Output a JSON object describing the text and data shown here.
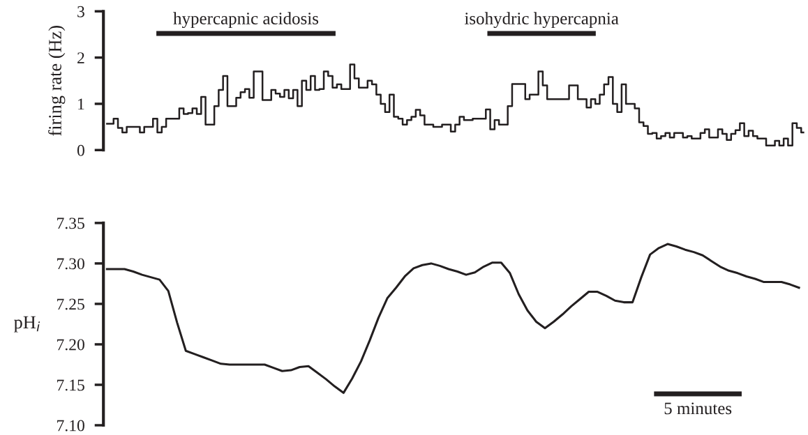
{
  "chart_data": [
    {
      "type": "step",
      "ylabel": "firing rate (Hz)",
      "ylim": [
        0,
        3
      ],
      "yticks": [
        0,
        1,
        2,
        3
      ],
      "tick_labels": "y",
      "grid": false,
      "legend": false,
      "categories": [
        null,
        null,
        null,
        null,
        null,
        null,
        null,
        null,
        null,
        null,
        null,
        null,
        null,
        null,
        null,
        null,
        null,
        null,
        null,
        null,
        null,
        null,
        null,
        null,
        null,
        null,
        null,
        null,
        null,
        null,
        null,
        null,
        null,
        null,
        null,
        null,
        null,
        null,
        null,
        null,
        null,
        null,
        null,
        null,
        null,
        null,
        null,
        null,
        null,
        null,
        null,
        null,
        null,
        null,
        null,
        null,
        null,
        null,
        null,
        null,
        null,
        null,
        null,
        null,
        null,
        null,
        null,
        null,
        null,
        null,
        null,
        null,
        null,
        null,
        null,
        null,
        null,
        null,
        null,
        null,
        null,
        null,
        null,
        null,
        null,
        null,
        null,
        null,
        null,
        null,
        null,
        null,
        null,
        null,
        null,
        null,
        null,
        null,
        null,
        null,
        null,
        null,
        null,
        null,
        null,
        null,
        null,
        null,
        null,
        null,
        null,
        null,
        null,
        null,
        null,
        null,
        null,
        null,
        null,
        null,
        null,
        null,
        null,
        null,
        null,
        null,
        null,
        null,
        null,
        null,
        null,
        null,
        null,
        null,
        null,
        null,
        null,
        null,
        null,
        null,
        null,
        null,
        null,
        null,
        null,
        null,
        null,
        null,
        null,
        null,
        null,
        null,
        null,
        null,
        null,
        null,
        null,
        null,
        null,
        null
      ],
      "series": [
        {
          "color": "#231f20",
          "values": [
            0.57,
            0.57,
            0.68,
            0.48,
            0.38,
            0.5,
            0.5,
            0.5,
            0.38,
            0.5,
            0.5,
            0.68,
            0.38,
            0.5,
            0.68,
            0.68,
            0.68,
            0.9,
            0.78,
            0.8,
            0.9,
            0.78,
            1.15,
            0.55,
            0.55,
            0.95,
            1.3,
            1.6,
            0.95,
            0.95,
            1.13,
            1.25,
            1.32,
            1.13,
            1.7,
            1.7,
            1.08,
            1.08,
            1.3,
            1.22,
            1.15,
            1.3,
            1.12,
            1.3,
            0.95,
            1.5,
            1.3,
            1.6,
            1.3,
            1.32,
            1.7,
            1.6,
            1.35,
            1.42,
            1.32,
            1.32,
            1.85,
            1.55,
            1.35,
            1.35,
            1.5,
            1.42,
            1.2,
            1.0,
            0.82,
            1.2,
            0.72,
            0.68,
            0.55,
            0.65,
            0.72,
            0.87,
            0.75,
            0.55,
            0.55,
            0.5,
            0.5,
            0.55,
            0.55,
            0.4,
            0.55,
            0.72,
            0.65,
            0.65,
            0.68,
            0.68,
            0.68,
            0.88,
            0.45,
            0.65,
            0.55,
            0.55,
            0.95,
            1.43,
            1.43,
            1.43,
            1.1,
            1.2,
            1.2,
            1.7,
            1.4,
            1.1,
            1.1,
            1.1,
            1.1,
            1.1,
            1.4,
            1.4,
            1.1,
            1.1,
            0.92,
            1.1,
            1.0,
            1.2,
            1.42,
            1.58,
            1.0,
            0.82,
            1.42,
            1.0,
            1.0,
            0.9,
            0.6,
            0.52,
            0.35,
            0.37,
            0.25,
            0.3,
            0.37,
            0.27,
            0.37,
            0.37,
            0.27,
            0.3,
            0.25,
            0.25,
            0.37,
            0.45,
            0.27,
            0.27,
            0.45,
            0.35,
            0.22,
            0.35,
            0.43,
            0.58,
            0.3,
            0.42,
            0.3,
            0.25,
            0.25,
            0.1,
            0.1,
            0.2,
            0.1,
            0.25,
            0.1,
            0.58,
            0.48,
            0.38
          ]
        }
      ],
      "annotations": [
        "hypercapnic acidosis",
        "isohydric hypercapnia"
      ]
    },
    {
      "type": "line",
      "ylabel": "pH$_{i}$",
      "ylim": [
        7.1,
        7.35
      ],
      "yticks": [
        {
          "value": 7.1,
          "label": "7.10"
        },
        7.15,
        {
          "value": 7.2,
          "label": "7.20"
        },
        7.25,
        {
          "value": 7.3,
          "label": "7.30"
        },
        7.35
      ],
      "tick_labels": "y",
      "grid": false,
      "legend": false,
      "marker": "none",
      "line_style": "solid",
      "categories": [
        null,
        null,
        null,
        null,
        null,
        null,
        null,
        null,
        null,
        null,
        null,
        null,
        null,
        null,
        null,
        null,
        null,
        null,
        null,
        null,
        null,
        null,
        null,
        null,
        null,
        null,
        null,
        null,
        null,
        null,
        null,
        null,
        null,
        null,
        null,
        null,
        null,
        null,
        null,
        null,
        null,
        null,
        null,
        null,
        null,
        null,
        null,
        null,
        null,
        null,
        null,
        null,
        null,
        null,
        null,
        null,
        null,
        null,
        null,
        null,
        null,
        null,
        null,
        null,
        null,
        null,
        null,
        null,
        null,
        null,
        null,
        null,
        null,
        null,
        null,
        null,
        null,
        null,
        null,
        null
      ],
      "series": [
        {
          "color": "#231f20",
          "values": [
            7.293,
            7.293,
            7.293,
            7.29,
            7.286,
            7.283,
            7.28,
            7.266,
            7.227,
            7.192,
            7.188,
            7.184,
            7.18,
            7.176,
            7.175,
            7.175,
            7.175,
            7.175,
            7.175,
            7.171,
            7.167,
            7.168,
            7.172,
            7.173,
            7.165,
            7.157,
            7.148,
            7.14,
            7.158,
            7.179,
            7.205,
            7.233,
            7.257,
            7.27,
            7.284,
            7.294,
            7.298,
            7.3,
            7.297,
            7.293,
            7.29,
            7.286,
            7.289,
            7.296,
            7.301,
            7.301,
            7.288,
            7.262,
            7.242,
            7.228,
            7.22,
            7.228,
            7.237,
            7.247,
            7.256,
            7.265,
            7.265,
            7.26,
            7.254,
            7.252,
            7.252,
            7.283,
            7.311,
            7.319,
            7.324,
            7.321,
            7.317,
            7.314,
            7.31,
            7.303,
            7.296,
            7.291,
            7.288,
            7.284,
            7.281,
            7.277,
            7.277,
            7.277,
            7.274,
            7.27
          ]
        }
      ],
      "annotations": [
        "5 minutes"
      ]
    }
  ]
}
